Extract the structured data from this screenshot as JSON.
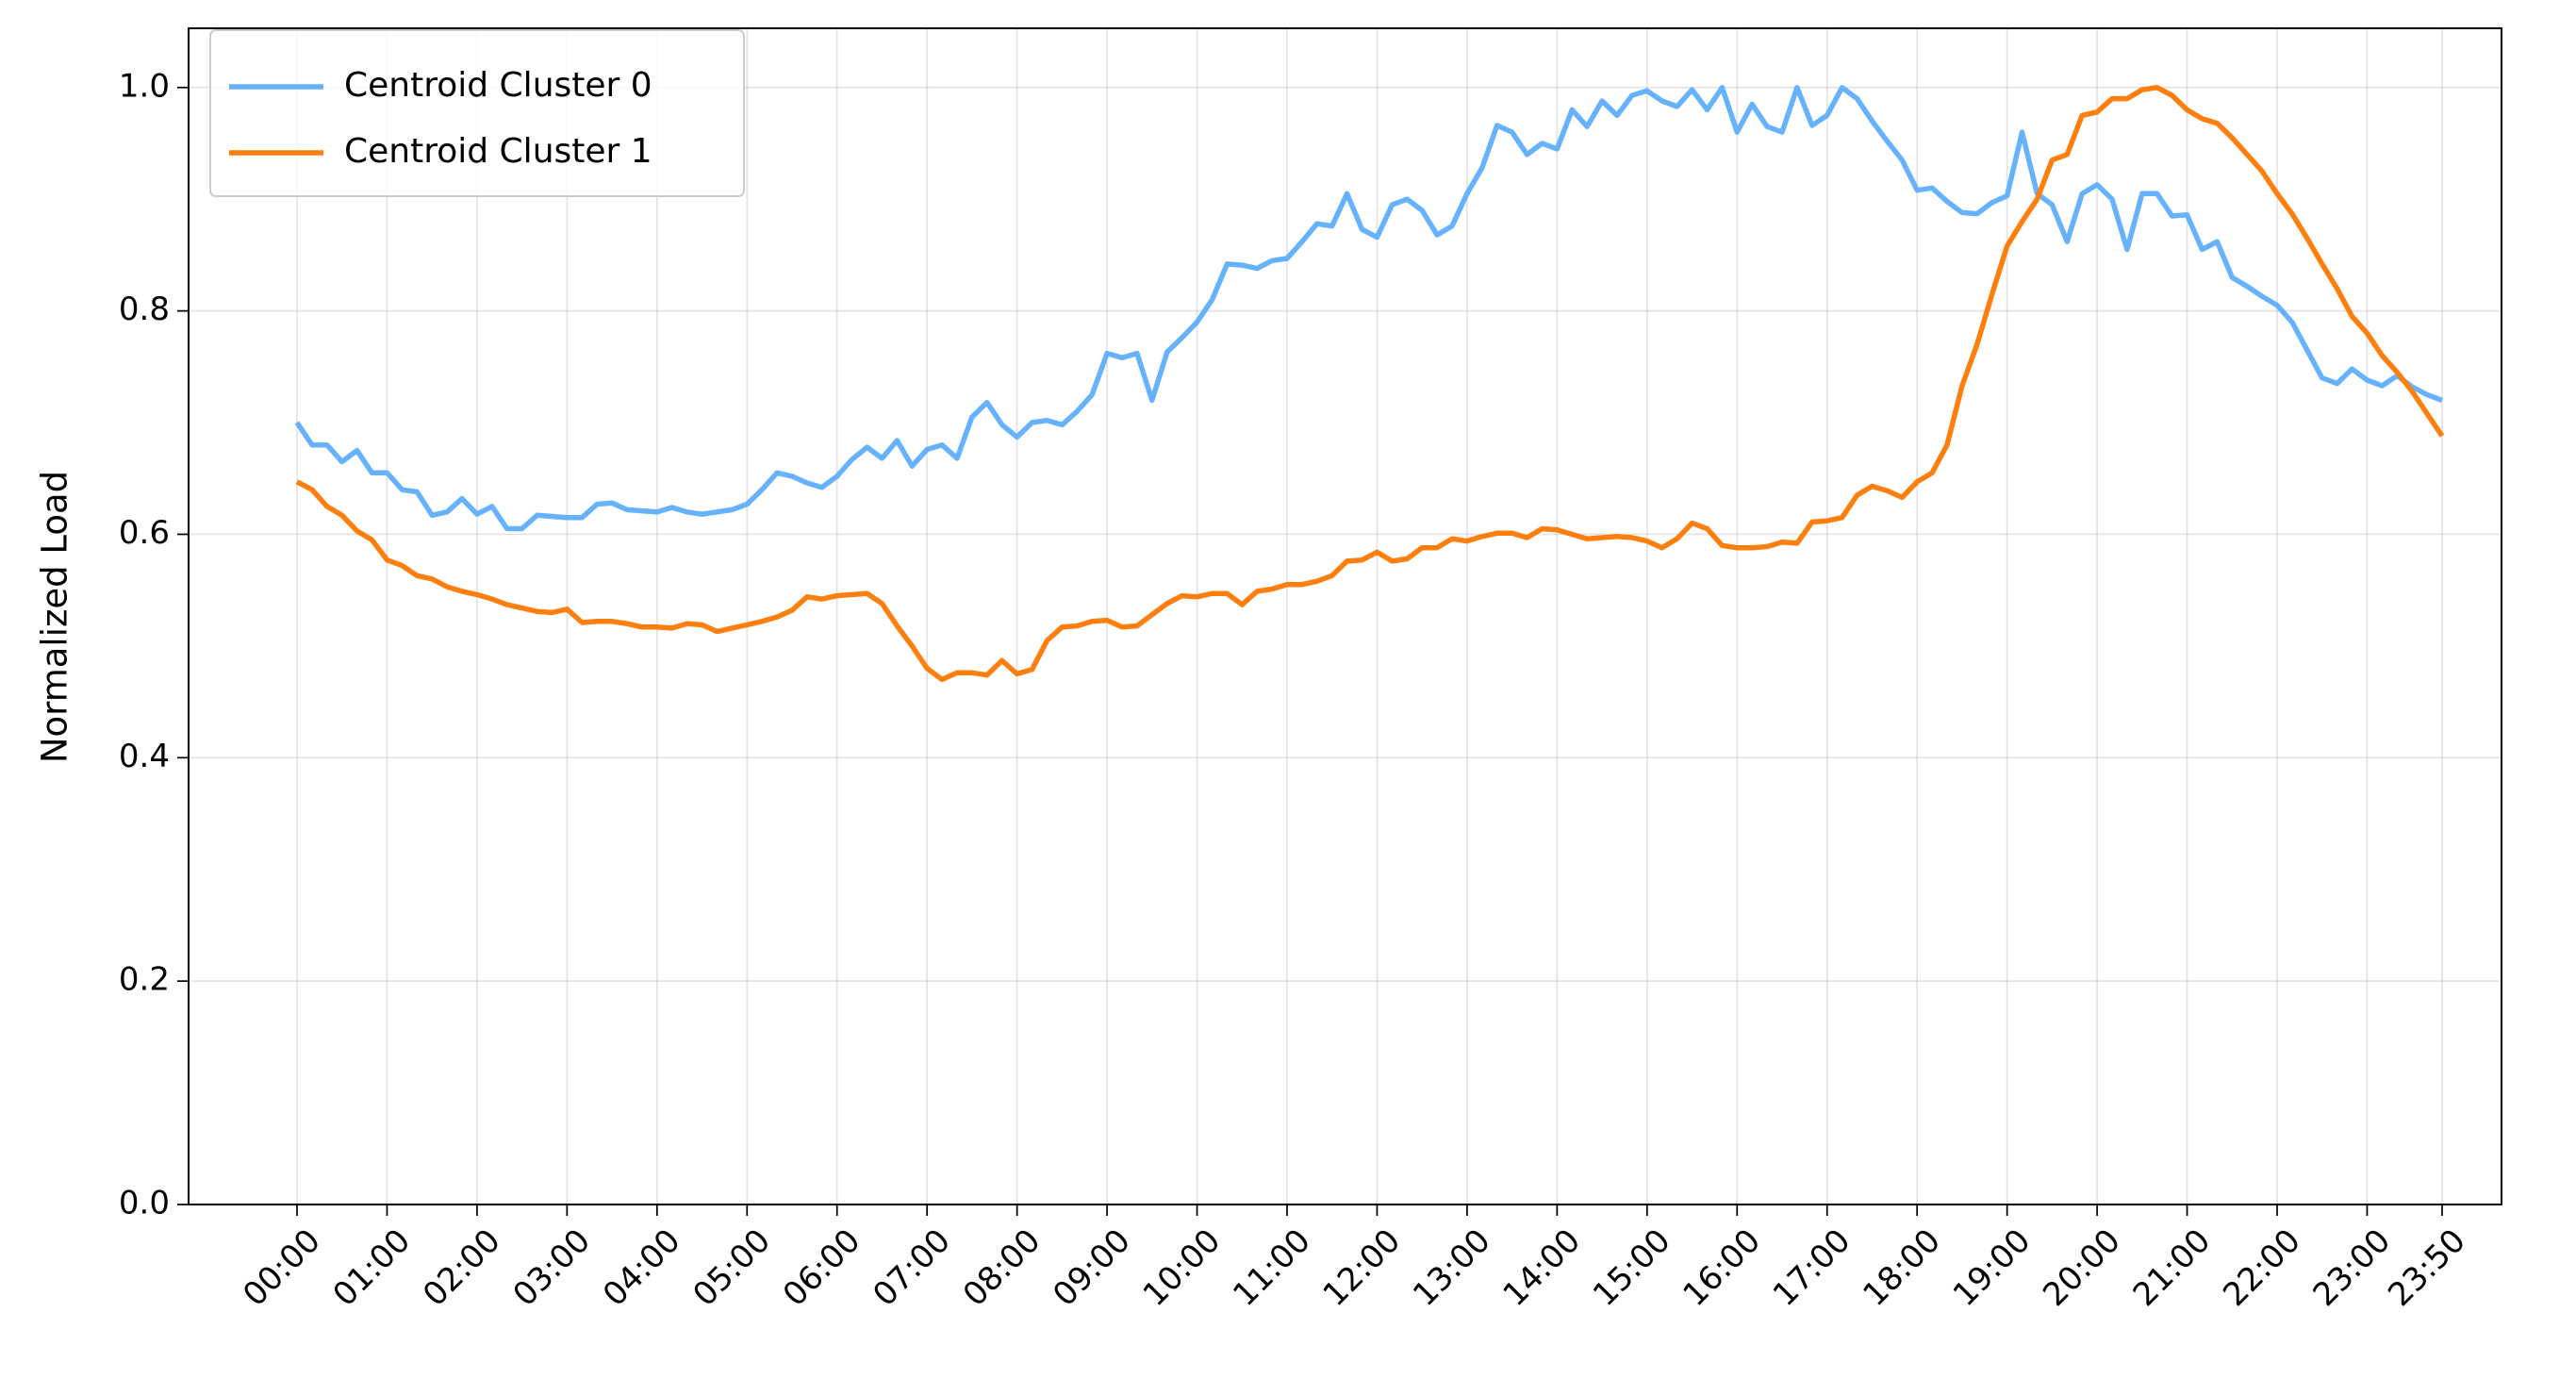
{
  "chart_data": {
    "type": "line",
    "ylabel": "Normalized Load",
    "categories": [
      "00:00",
      null,
      null,
      null,
      null,
      null,
      "01:00",
      null,
      null,
      null,
      null,
      null,
      "02:00",
      null,
      null,
      null,
      null,
      null,
      "03:00",
      null,
      null,
      null,
      null,
      null,
      "04:00",
      null,
      null,
      null,
      null,
      null,
      "05:00",
      null,
      null,
      null,
      null,
      null,
      "06:00",
      null,
      null,
      null,
      null,
      null,
      "07:00",
      null,
      null,
      null,
      null,
      null,
      "08:00",
      null,
      null,
      null,
      null,
      null,
      "09:00",
      null,
      null,
      null,
      null,
      null,
      "10:00",
      null,
      null,
      null,
      null,
      null,
      "11:00",
      null,
      null,
      null,
      null,
      null,
      "12:00",
      null,
      null,
      null,
      null,
      null,
      "13:00",
      null,
      null,
      null,
      null,
      null,
      "14:00",
      null,
      null,
      null,
      null,
      null,
      "15:00",
      null,
      null,
      null,
      null,
      null,
      "16:00",
      null,
      null,
      null,
      null,
      null,
      "17:00",
      null,
      null,
      null,
      null,
      null,
      "18:00",
      null,
      null,
      null,
      null,
      null,
      "19:00",
      null,
      null,
      null,
      null,
      null,
      "20:00",
      null,
      null,
      null,
      null,
      null,
      "21:00",
      null,
      null,
      null,
      null,
      null,
      "22:00",
      null,
      null,
      null,
      null,
      null,
      "23:00",
      null,
      null,
      null,
      null,
      "23:50"
    ],
    "series": [
      {
        "name": "Centroid Cluster 0",
        "color": "#66b2ff",
        "values": [
          0.7,
          0.68,
          0.68,
          0.665,
          0.675,
          0.655,
          0.655,
          0.64,
          0.638,
          0.617,
          0.62,
          0.632,
          0.618,
          0.625,
          0.605,
          0.605,
          0.617,
          0.616,
          0.615,
          0.615,
          0.627,
          0.628,
          0.622,
          0.621,
          0.62,
          0.624,
          0.62,
          0.618,
          0.62,
          0.622,
          0.627,
          0.64,
          0.655,
          0.652,
          0.646,
          0.642,
          0.652,
          0.667,
          0.678,
          0.668,
          0.684,
          0.661,
          0.676,
          0.68,
          0.668,
          0.705,
          0.718,
          0.698,
          0.687,
          0.7,
          0.702,
          0.698,
          0.71,
          0.725,
          0.762,
          0.758,
          0.762,
          0.72,
          0.763,
          0.776,
          0.79,
          0.81,
          0.842,
          0.841,
          0.838,
          0.845,
          0.847,
          0.862,
          0.878,
          0.876,
          0.905,
          0.873,
          0.866,
          0.895,
          0.9,
          0.89,
          0.868,
          0.876,
          0.905,
          0.928,
          0.966,
          0.96,
          0.94,
          0.95,
          0.945,
          0.98,
          0.965,
          0.988,
          0.975,
          0.993,
          0.997,
          0.988,
          0.983,
          0.998,
          0.98,
          1.0,
          0.96,
          0.985,
          0.965,
          0.96,
          1.0,
          0.966,
          0.975,
          1.0,
          0.99,
          0.97,
          0.952,
          0.935,
          0.908,
          0.91,
          0.898,
          0.888,
          0.887,
          0.897,
          0.903,
          0.96,
          0.905,
          0.895,
          0.862,
          0.905,
          0.913,
          0.9,
          0.855,
          0.905,
          0.905,
          0.885,
          0.886,
          0.855,
          0.862,
          0.83,
          0.822,
          0.813,
          0.805,
          0.79,
          0.765,
          0.74,
          0.735,
          0.748,
          0.738,
          0.733,
          0.742,
          0.732,
          0.725,
          0.72
        ]
      },
      {
        "name": "Centroid Cluster 1",
        "color": "#ff7f0e",
        "values": [
          0.647,
          0.64,
          0.625,
          0.617,
          0.603,
          0.595,
          0.577,
          0.572,
          0.563,
          0.56,
          0.553,
          0.549,
          0.546,
          0.542,
          0.537,
          0.534,
          0.531,
          0.53,
          0.533,
          0.521,
          0.522,
          0.522,
          0.52,
          0.517,
          0.517,
          0.516,
          0.52,
          0.519,
          0.513,
          0.516,
          0.519,
          0.522,
          0.526,
          0.532,
          0.544,
          0.542,
          0.545,
          0.546,
          0.547,
          0.538,
          0.518,
          0.5,
          0.48,
          0.47,
          0.476,
          0.476,
          0.474,
          0.487,
          0.475,
          0.479,
          0.505,
          0.517,
          0.518,
          0.522,
          0.523,
          0.517,
          0.518,
          0.528,
          0.538,
          0.545,
          0.544,
          0.547,
          0.547,
          0.537,
          0.549,
          0.551,
          0.555,
          0.555,
          0.558,
          0.563,
          0.576,
          0.577,
          0.584,
          0.576,
          0.578,
          0.588,
          0.588,
          0.596,
          0.594,
          0.598,
          0.601,
          0.601,
          0.597,
          0.605,
          0.604,
          0.6,
          0.596,
          0.597,
          0.598,
          0.597,
          0.594,
          0.588,
          0.596,
          0.61,
          0.605,
          0.59,
          0.588,
          0.588,
          0.589,
          0.593,
          0.592,
          0.611,
          0.612,
          0.615,
          0.635,
          0.643,
          0.639,
          0.633,
          0.647,
          0.655,
          0.68,
          0.733,
          0.77,
          0.815,
          0.858,
          0.88,
          0.9,
          0.935,
          0.94,
          0.975,
          0.978,
          0.99,
          0.99,
          0.998,
          1.0,
          0.993,
          0.98,
          0.972,
          0.968,
          0.955,
          0.94,
          0.925,
          0.905,
          0.887,
          0.865,
          0.842,
          0.82,
          0.795,
          0.78,
          0.76,
          0.745,
          0.728,
          0.708,
          0.688
        ]
      }
    ],
    "ylim": [
      0,
      1.053
    ],
    "yticks": [
      {
        "value": 0,
        "label": "0.0"
      },
      0.2,
      0.4,
      0.6,
      0.8,
      {
        "value": 1,
        "label": "1.0"
      }
    ],
    "grid": true,
    "legend": "upper left"
  }
}
